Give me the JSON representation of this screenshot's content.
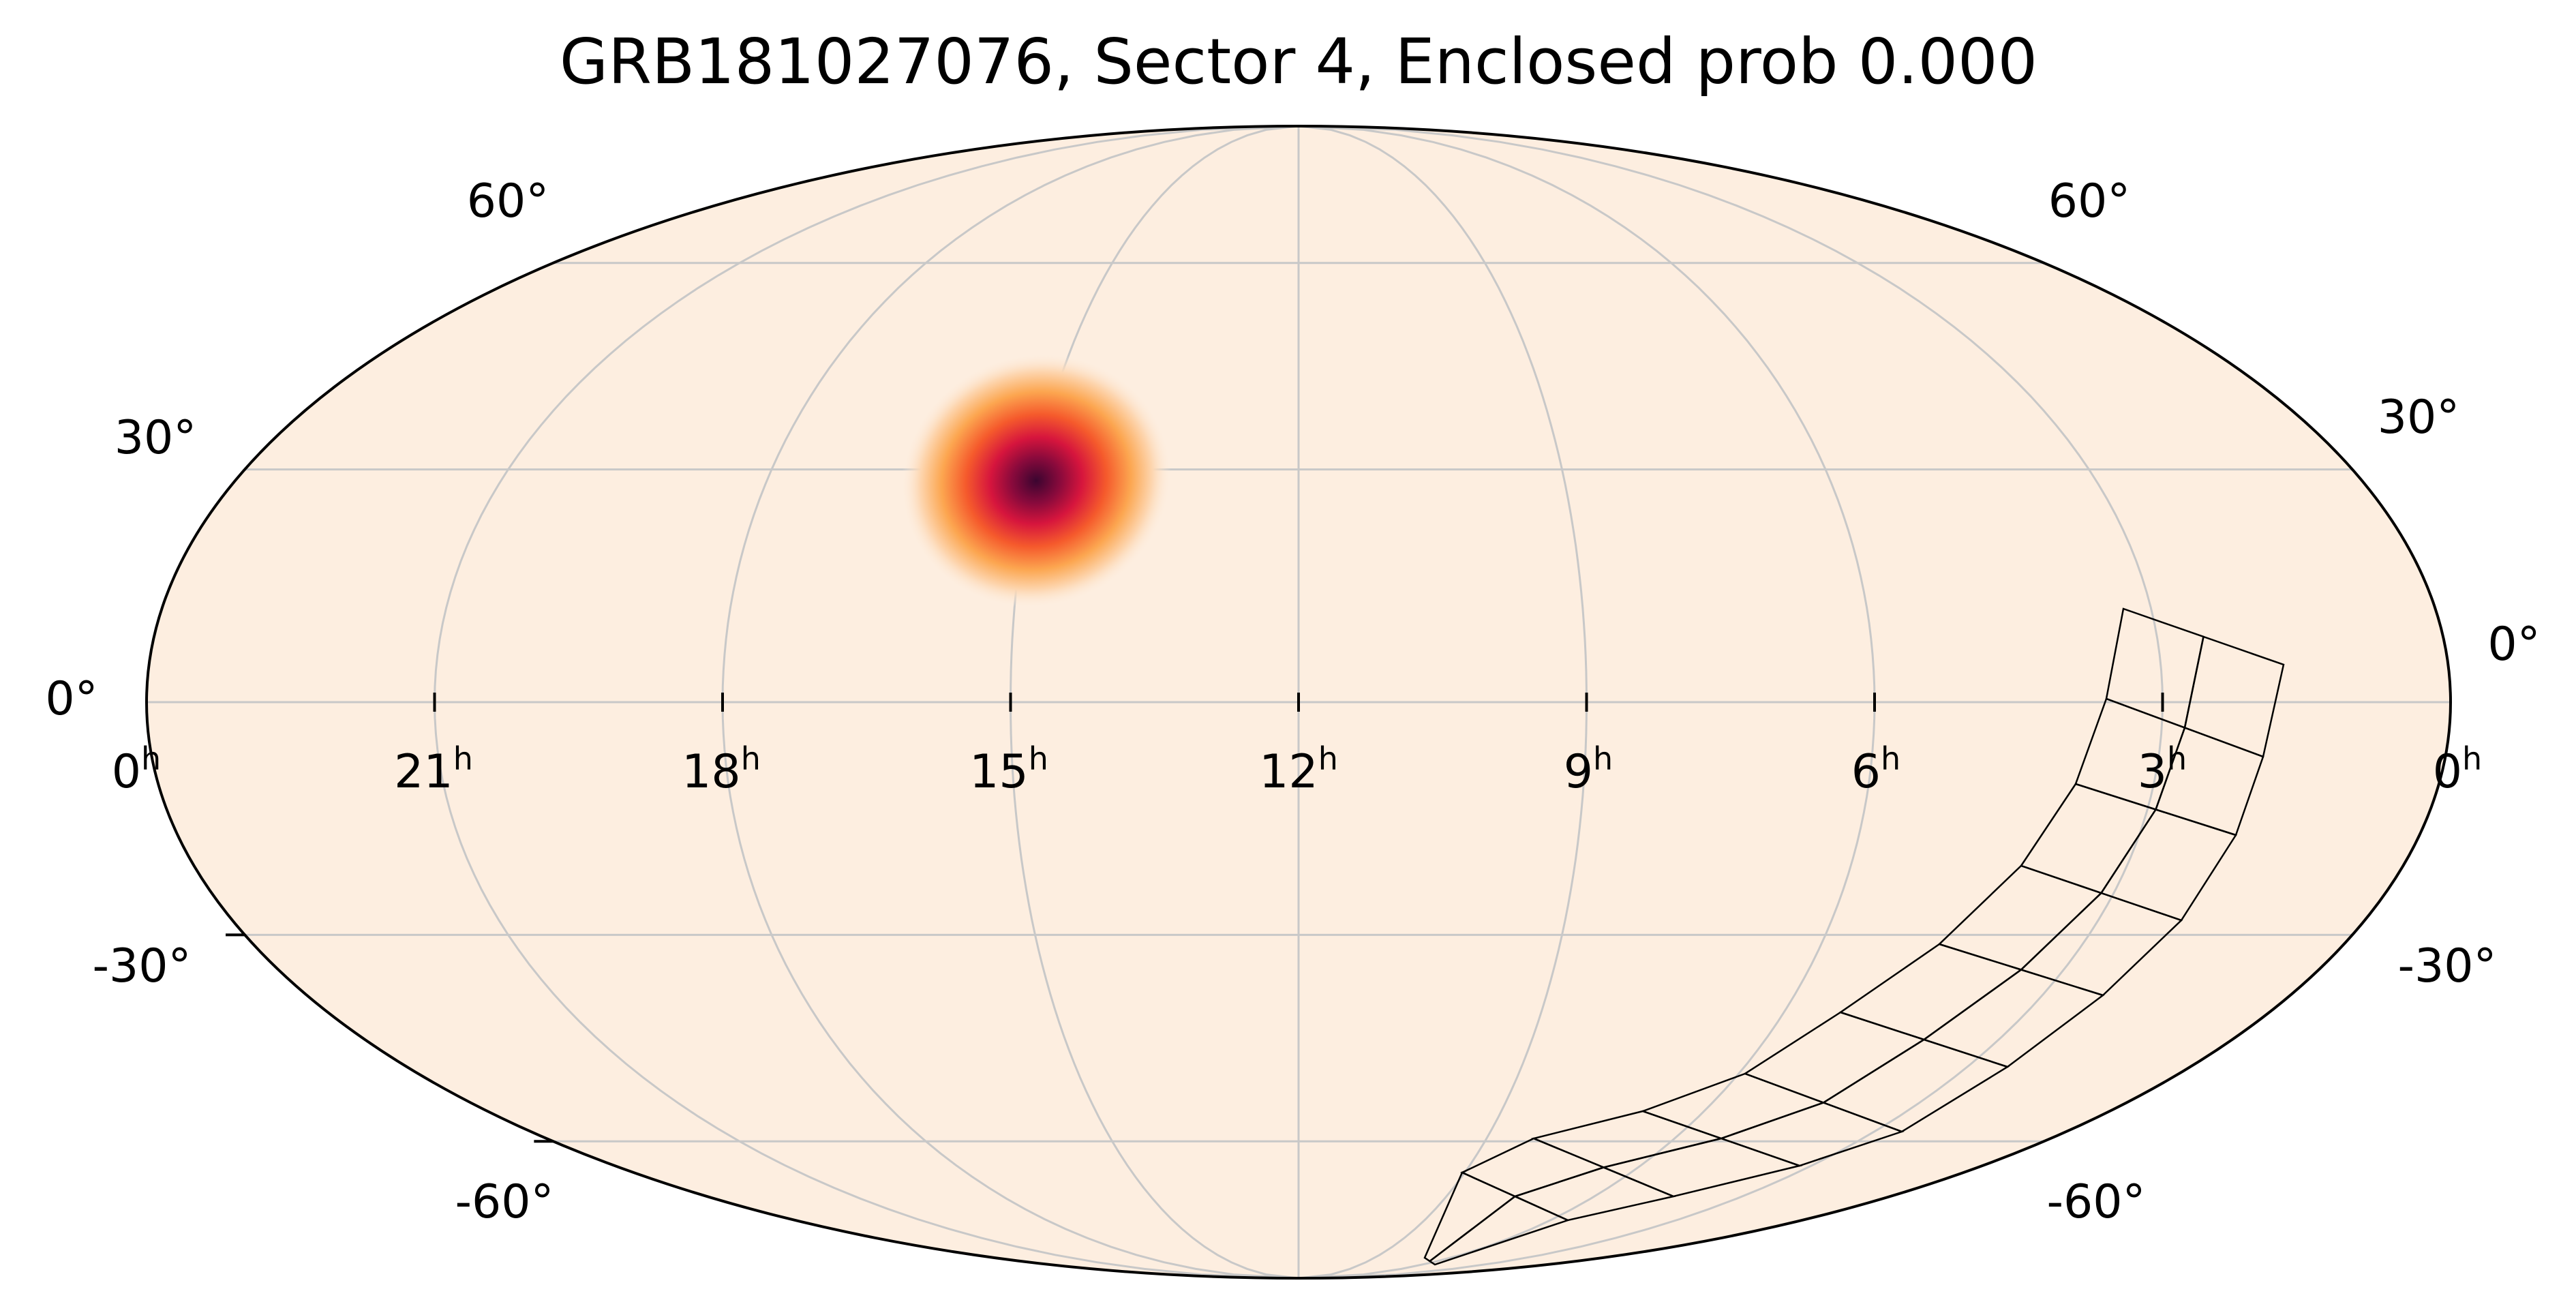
{
  "title": "GRB181027076, Sector 4, Enclosed prob 0.000",
  "map": {
    "projection": "mollweide",
    "background_color": "#fdeee0",
    "outline_color": "#000000",
    "grid_color": "#c8c8c8",
    "colormap": "magma-like heat (pale peach to deep crimson)",
    "ra_meridians_hours": [
      21,
      18,
      15,
      12,
      9,
      6,
      3
    ],
    "dec_parallels_deg": [
      60,
      30,
      0,
      -30,
      -60
    ],
    "hotspot": {
      "ra_hours": 14.9,
      "dec_deg": 23
    }
  },
  "labels": {
    "ra": [
      {
        "name": "ra-tick-label-0h-left",
        "base": "0",
        "sup": "h"
      },
      {
        "name": "ra-tick-label-21h",
        "base": "21",
        "sup": "h"
      },
      {
        "name": "ra-tick-label-18h",
        "base": "18",
        "sup": "h"
      },
      {
        "name": "ra-tick-label-15h",
        "base": "15",
        "sup": "h"
      },
      {
        "name": "ra-tick-label-12h",
        "base": "12",
        "sup": "h"
      },
      {
        "name": "ra-tick-label-9h",
        "base": "9",
        "sup": "h"
      },
      {
        "name": "ra-tick-label-6h",
        "base": "6",
        "sup": "h"
      },
      {
        "name": "ra-tick-label-3h",
        "base": "3",
        "sup": "h"
      },
      {
        "name": "ra-tick-label-0h-right",
        "base": "0",
        "sup": "h"
      }
    ],
    "dec_left": [
      "60°",
      "30°",
      "0°",
      "-30°",
      "-60°"
    ],
    "dec_right": [
      "60°",
      "30°",
      "0°",
      "-30°",
      "-60°"
    ]
  },
  "sector": {
    "name": "Sector 4",
    "camera_count": 4,
    "ccds_per_camera": 4
  }
}
